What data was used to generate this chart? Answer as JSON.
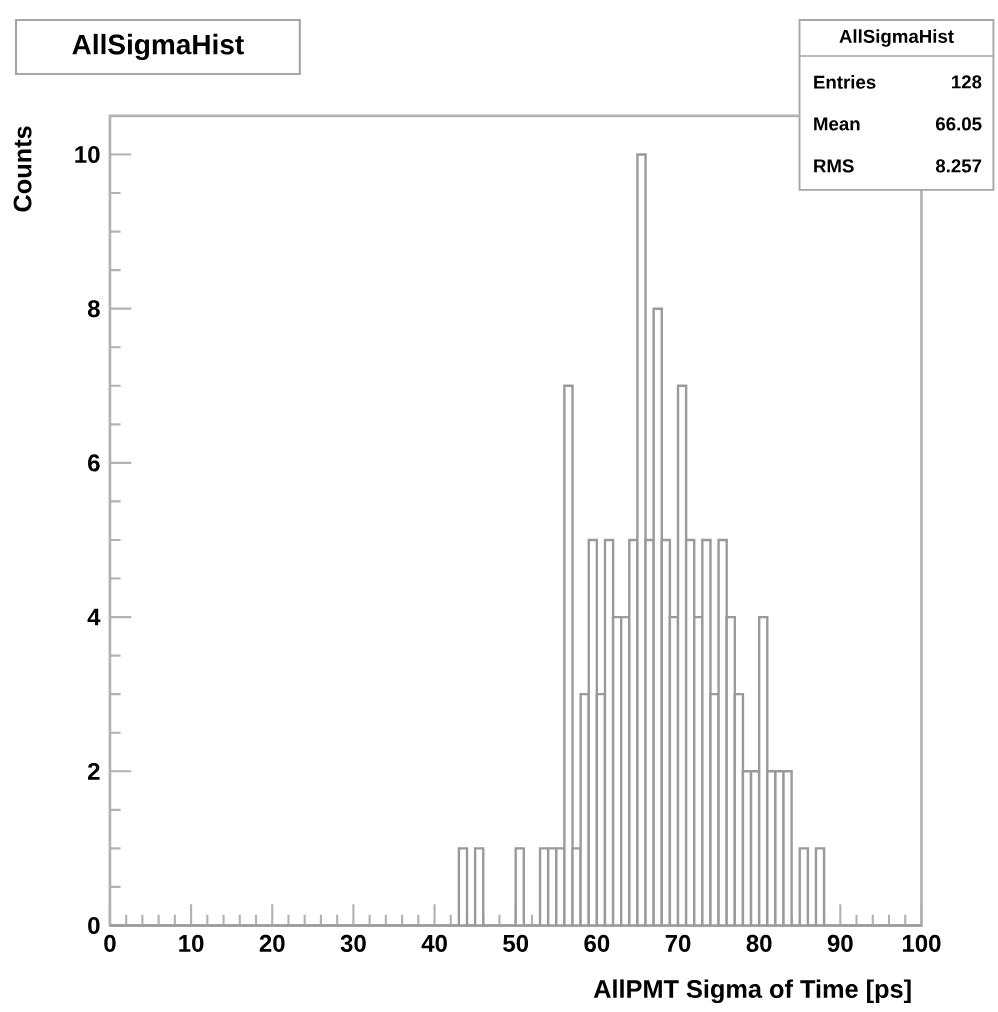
{
  "chart_data": {
    "type": "histogram",
    "title": "AllSigmaHist",
    "xlabel": "AllPMT Sigma of Time [ps]",
    "ylabel": "Counts",
    "bins": [
      0,
      1,
      2,
      3,
      4,
      5,
      6,
      7,
      8,
      9,
      10,
      11,
      12,
      13,
      14,
      15,
      16,
      17,
      18,
      19,
      20,
      21,
      22,
      23,
      24,
      25,
      26,
      27,
      28,
      29,
      30,
      31,
      32,
      33,
      34,
      35,
      36,
      37,
      38,
      39,
      40,
      41,
      42,
      43,
      44,
      45,
      46,
      47,
      48,
      49,
      50,
      51,
      52,
      53,
      54,
      55,
      56,
      57,
      58,
      59,
      60,
      61,
      62,
      63,
      64,
      65,
      66,
      67,
      68,
      69,
      70,
      71,
      72,
      73,
      74,
      75,
      76,
      77,
      78,
      79,
      80,
      81,
      82,
      83,
      84,
      85,
      86,
      87,
      88,
      89,
      90,
      91,
      92,
      93,
      94,
      95,
      96,
      97,
      98,
      99,
      100
    ],
    "values": [
      0,
      0,
      0,
      0,
      0,
      0,
      0,
      0,
      0,
      0,
      0,
      0,
      0,
      0,
      0,
      0,
      0,
      0,
      0,
      0,
      0,
      0,
      0,
      0,
      0,
      0,
      0,
      0,
      0,
      0,
      0,
      0,
      0,
      0,
      0,
      0,
      0,
      0,
      0,
      0,
      0,
      0,
      0,
      1,
      0,
      1,
      0,
      0,
      0,
      0,
      1,
      0,
      0,
      1,
      1,
      1,
      7,
      1,
      3,
      5,
      3,
      5,
      4,
      4,
      5,
      10,
      5,
      8,
      5,
      4,
      7,
      5,
      4,
      5,
      3,
      5,
      4,
      3,
      2,
      2,
      4,
      2,
      2,
      2,
      0,
      1,
      0,
      1,
      0,
      0,
      0,
      0,
      0,
      0,
      0,
      0,
      0,
      0,
      0,
      0
    ],
    "color": "#9a9a9a",
    "xlim": [
      0,
      100
    ],
    "ylim": [
      0,
      10.5
    ],
    "xticks": [
      0,
      10,
      20,
      30,
      40,
      50,
      60,
      70,
      80,
      90,
      100
    ],
    "yticks": [
      0,
      2,
      4,
      6,
      8,
      10
    ],
    "annotations": [
      "AllSigmaHist",
      "Entries",
      "128",
      "Mean",
      "66.05",
      "RMS",
      "8.257"
    ],
    "grid": false
  }
}
